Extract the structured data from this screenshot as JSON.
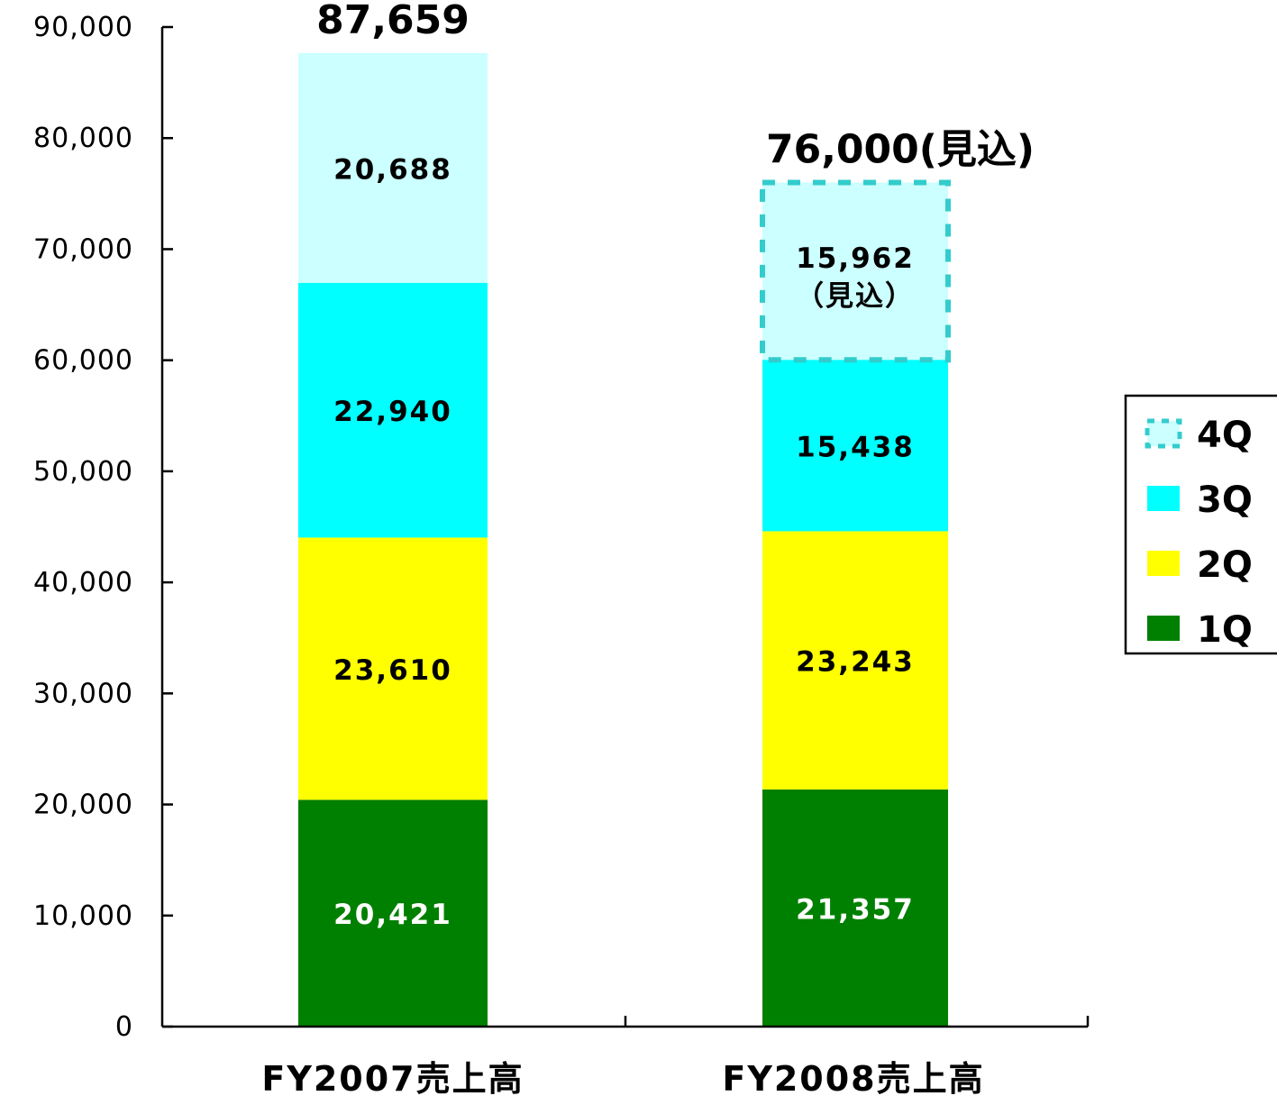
{
  "chart_data": {
    "type": "bar",
    "stacked": true,
    "categories": [
      "FY2007売上高",
      "FY2008売上高"
    ],
    "series": [
      {
        "name": "1Q",
        "values": [
          20421,
          21357
        ],
        "labels": [
          "20,421",
          "21,357"
        ],
        "color": "#008000",
        "label_color": "#ffffff"
      },
      {
        "name": "2Q",
        "values": [
          23610,
          23243
        ],
        "labels": [
          "23,610",
          "23,243"
        ],
        "color": "#ffff00",
        "label_color": "#000000"
      },
      {
        "name": "3Q",
        "values": [
          22940,
          15438
        ],
        "labels": [
          "22,940",
          "15,438"
        ],
        "color": "#00ffff",
        "label_color": "#000000"
      },
      {
        "name": "4Q",
        "values": [
          20688,
          15962
        ],
        "labels": [
          "20,688",
          "15,962"
        ],
        "sublabels": [
          "",
          "（見込）"
        ],
        "estimated": [
          false,
          true
        ],
        "color": "#ccffff",
        "label_color": "#000000"
      }
    ],
    "totals": [
      "87,659",
      "76,000(見込)"
    ],
    "yticks": [
      "0",
      "10,000",
      "20,000",
      "30,000",
      "40,000",
      "50,000",
      "60,000",
      "70,000",
      "80,000",
      "90,000"
    ],
    "ylim": [
      0,
      90000
    ],
    "grid": false,
    "legend_position": "right",
    "estimate_border_color": "#33cccc"
  }
}
